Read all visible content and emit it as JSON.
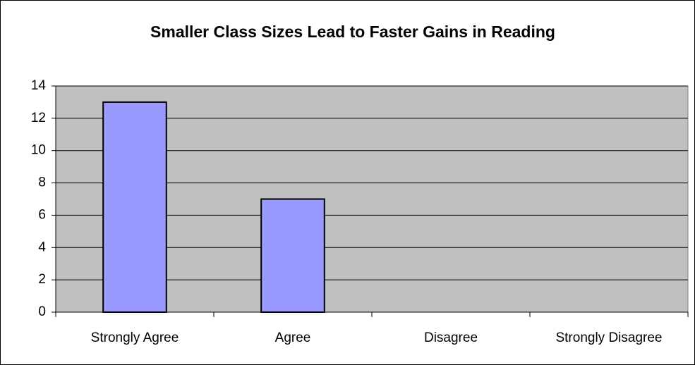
{
  "chart_data": {
    "type": "bar",
    "title": "Smaller Class Sizes Lead to Faster Gains in Reading",
    "categories": [
      "Strongly Agree",
      "Agree",
      "Disagree",
      "Strongly Disagree"
    ],
    "values": [
      13,
      7,
      0,
      0
    ],
    "color": "#9999ff",
    "ylim": [
      0,
      14
    ],
    "yticks": [
      0,
      2,
      4,
      6,
      8,
      10,
      12,
      14
    ],
    "grid": true
  }
}
